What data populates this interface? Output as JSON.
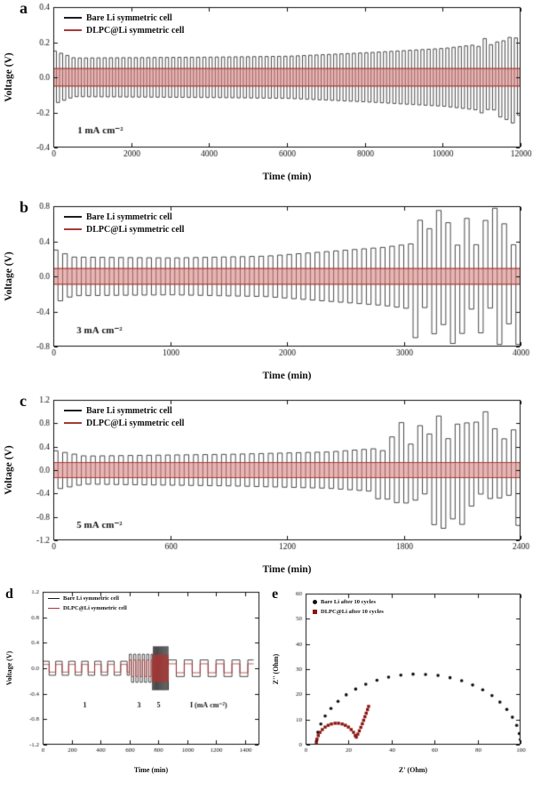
{
  "chart_data": [
    {
      "panel": "a",
      "type": "line",
      "xlabel": "Time (min)",
      "ylabel": "Voltage (V)",
      "xlim": [
        0,
        12000
      ],
      "ylim": [
        -0.4,
        0.4
      ],
      "xticks": [
        "0",
        "2000",
        "4000",
        "6000",
        "8000",
        "10000",
        "12000"
      ],
      "yticks": [
        "-0.4",
        "-0.2",
        "0.0",
        "0.2",
        "0.4"
      ],
      "legend": [
        "Bare Li symmetric cell",
        "DLPC@Li symmetric cell"
      ],
      "annotations": [
        {
          "text": "1 mA cm⁻²",
          "x": 620,
          "y": -0.305
        }
      ],
      "series": [
        {
          "name": "Bare Li symmetric cell",
          "kind": "square",
          "color": "#1c1c1c",
          "period": 160,
          "envelope": [
            [
              0,
              0.15
            ],
            [
              500,
              0.11
            ],
            [
              4000,
              0.115
            ],
            [
              6000,
              0.12
            ],
            [
              8000,
              0.14
            ],
            [
              10000,
              0.165
            ],
            [
              12000,
              0.215
            ]
          ],
          "noise_after": 10800,
          "noise": 0.2
        },
        {
          "name": "DLPC@Li symmetric cell",
          "kind": "band",
          "color": "#a83a36",
          "fill": "rgba(214,120,117,0.55)",
          "amp": 0.05
        }
      ]
    },
    {
      "panel": "b",
      "type": "line",
      "xlabel": "Time (min)",
      "ylabel": "Voltage (V)",
      "xlim": [
        0,
        4000
      ],
      "ylim": [
        -0.8,
        0.8
      ],
      "xticks": [
        "0",
        "1000",
        "2000",
        "3000",
        "4000"
      ],
      "yticks": [
        "-0.8",
        "-0.4",
        "0.0",
        "0.4",
        "0.8"
      ],
      "legend": [
        "Bare Li symmetric cell",
        "DLPC@Li symmetric cell"
      ],
      "annotations": [
        {
          "text": "3 mA cm⁻²",
          "x": 200,
          "y": -0.62
        }
      ],
      "series": [
        {
          "name": "Bare Li symmetric cell",
          "kind": "square",
          "color": "#1c1c1c",
          "period": 80,
          "envelope": [
            [
              0,
              0.3
            ],
            [
              150,
              0.22
            ],
            [
              1000,
              0.21
            ],
            [
              1800,
              0.23
            ],
            [
              2300,
              0.28
            ],
            [
              2800,
              0.33
            ],
            [
              3100,
              0.38
            ],
            [
              4000,
              0.5
            ]
          ],
          "noise_after": 3050,
          "noise": 0.7
        },
        {
          "name": "DLPC@Li symmetric cell",
          "kind": "band",
          "color": "#a83a36",
          "fill": "rgba(214,120,117,0.55)",
          "amp": 0.09
        }
      ]
    },
    {
      "panel": "c",
      "type": "line",
      "xlabel": "Time (min)",
      "ylabel": "Voltage (V)",
      "xlim": [
        0,
        2400
      ],
      "ylim": [
        -1.2,
        1.2
      ],
      "xticks": [
        "0",
        "600",
        "1200",
        "1800",
        "2400"
      ],
      "yticks": [
        "-1.2",
        "-0.8",
        "-0.4",
        "0.0",
        "0.4",
        "0.8",
        "1.2"
      ],
      "legend": [
        "Bare Li symmetric cell",
        "DLPC@Li symmetric cell"
      ],
      "annotations": [
        {
          "text": "5 mA cm⁻²",
          "x": 120,
          "y": -0.95
        }
      ],
      "series": [
        {
          "name": "Bare Li symmetric cell",
          "kind": "square",
          "color": "#1c1c1c",
          "period": 48,
          "envelope": [
            [
              0,
              0.33
            ],
            [
              150,
              0.24
            ],
            [
              900,
              0.27
            ],
            [
              1400,
              0.31
            ],
            [
              1700,
              0.38
            ],
            [
              1900,
              0.5
            ],
            [
              2100,
              0.55
            ],
            [
              2400,
              0.6
            ]
          ],
          "noise_after": 1650,
          "noise": 0.7
        },
        {
          "name": "DLPC@Li symmetric cell",
          "kind": "band",
          "color": "#a83a36",
          "fill": "rgba(214,120,117,0.55)",
          "amp": 0.13
        }
      ]
    },
    {
      "panel": "d",
      "type": "line",
      "xlabel": "Time (min)",
      "ylabel": "Voltage (V)",
      "xlim": [
        0,
        1500
      ],
      "ylim": [
        -1.2,
        1.2
      ],
      "xticks": [
        "0",
        "200",
        "400",
        "600",
        "800",
        "1000",
        "1200",
        "1400"
      ],
      "yticks": [
        "-1.2",
        "-0.8",
        "-0.4",
        "0.0",
        "0.4",
        "0.8",
        "1.2"
      ],
      "legend": [
        "Bare Li symmetric cell",
        "DLPC@Li symmetric cell"
      ],
      "annotations": [
        {
          "text": "1",
          "x": 280,
          "y": -0.58
        },
        {
          "text": "3",
          "x": 655,
          "y": -0.58
        },
        {
          "text": "5",
          "x": 790,
          "y": -0.58
        },
        {
          "text": "I (mA cm⁻²)",
          "x": 1020,
          "y": -0.58
        }
      ],
      "series": [
        {
          "name": "Bare Li symmetric cell",
          "kind": "steps",
          "color": "#1c1c1c",
          "segments": [
            [
              0,
              600,
              90,
              0.11
            ],
            [
              600,
              760,
              30,
              0.22
            ],
            [
              760,
              870,
              12,
              0.34
            ],
            [
              870,
              1460,
              110,
              0.13
            ]
          ]
        },
        {
          "name": "DLPC@Li symmetric cell",
          "kind": "steps",
          "color": "#b23331",
          "segments": [
            [
              0,
              600,
              90,
              0.06
            ],
            [
              600,
              760,
              30,
              0.13
            ],
            [
              760,
              870,
              12,
              0.21
            ],
            [
              870,
              1460,
              110,
              0.07
            ]
          ]
        }
      ]
    },
    {
      "panel": "e",
      "type": "scatter",
      "xlabel": "Z' (Ohm)",
      "ylabel": "Z'' (Ohm)",
      "xlim": [
        0,
        100
      ],
      "ylim": [
        0,
        60
      ],
      "xticks": [
        "0",
        "20",
        "40",
        "60",
        "80",
        "100"
      ],
      "yticks": [
        "0",
        "10",
        "20",
        "30",
        "40",
        "50",
        "60"
      ],
      "legend": [
        "Bare Li after 10 cycles",
        "DLPC@Li after 10 cycles"
      ],
      "annotations": [],
      "series": [
        {
          "name": "Bare Li after 10 cycles",
          "kind": "scatter",
          "marker": "circle",
          "color": "#111111",
          "points": [
            [
              5.1,
              1.5
            ],
            [
              5.7,
              4.9
            ],
            [
              7.1,
              8.2
            ],
            [
              9.1,
              11.4
            ],
            [
              11.8,
              14.4
            ],
            [
              15.1,
              17.2
            ],
            [
              18.9,
              19.8
            ],
            [
              23.3,
              22.1
            ],
            [
              28.0,
              24.0
            ],
            [
              33.2,
              25.6
            ],
            [
              38.6,
              26.8
            ],
            [
              44.3,
              27.6
            ],
            [
              50.0,
              28.0
            ],
            [
              55.8,
              27.9
            ],
            [
              61.6,
              27.5
            ],
            [
              67.2,
              26.6
            ],
            [
              72.6,
              25.4
            ],
            [
              77.7,
              23.7
            ],
            [
              82.4,
              21.8
            ],
            [
              86.7,
              19.5
            ],
            [
              90.4,
              16.9
            ],
            [
              93.6,
              14.0
            ],
            [
              96.2,
              10.9
            ],
            [
              98.2,
              7.7
            ],
            [
              99.4,
              4.4
            ],
            [
              99.9,
              2.0
            ]
          ]
        },
        {
          "name": "DLPC@Li after 10 cycles",
          "kind": "scatter",
          "marker": "square",
          "color": "#8b1510",
          "points": [
            [
              5.0,
              0.7
            ],
            [
              5.3,
              2.2
            ],
            [
              5.9,
              3.6
            ],
            [
              6.7,
              4.9
            ],
            [
              7.8,
              6.0
            ],
            [
              9.1,
              7.0
            ],
            [
              10.5,
              7.7
            ],
            [
              12.0,
              8.2
            ],
            [
              13.7,
              8.5
            ],
            [
              15.3,
              8.5
            ],
            [
              17.0,
              8.2
            ],
            [
              18.5,
              7.7
            ],
            [
              19.9,
              7.0
            ],
            [
              21.2,
              6.0
            ],
            [
              22.3,
              4.9
            ],
            [
              23.1,
              3.6
            ],
            [
              23.6,
              3.0
            ],
            [
              24.3,
              4.2
            ],
            [
              25.0,
              5.5
            ],
            [
              25.7,
              6.9
            ],
            [
              26.4,
              8.3
            ],
            [
              27.0,
              9.7
            ],
            [
              27.6,
              11.1
            ],
            [
              28.2,
              12.5
            ],
            [
              28.8,
              13.9
            ],
            [
              29.3,
              15.2
            ]
          ]
        }
      ]
    }
  ]
}
